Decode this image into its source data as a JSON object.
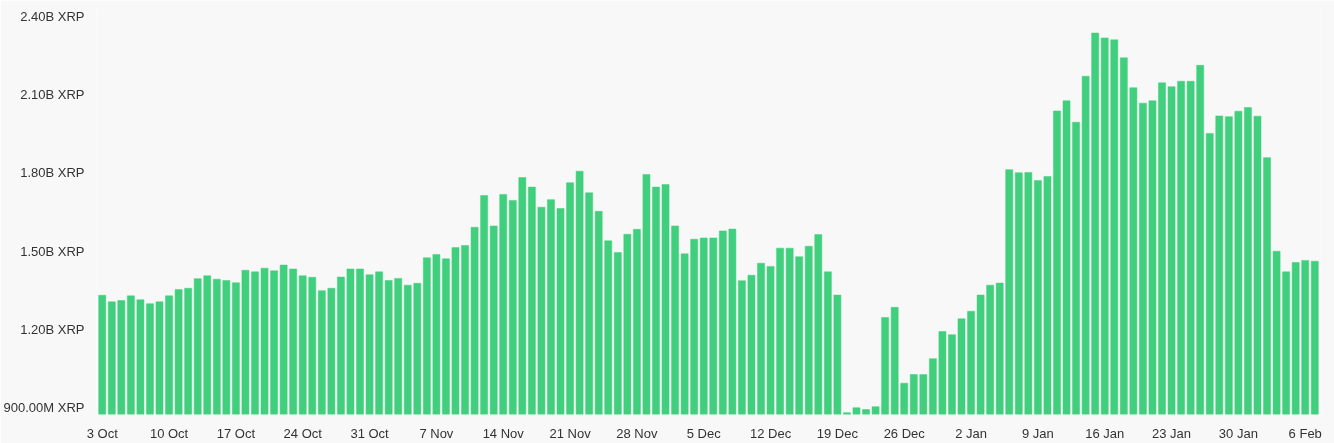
{
  "chart_data": {
    "type": "bar",
    "color": "#40cf7d",
    "categories": [
      "3 Oct",
      null,
      null,
      null,
      null,
      null,
      null,
      "10 Oct",
      null,
      null,
      null,
      null,
      null,
      null,
      "17 Oct",
      null,
      null,
      null,
      null,
      null,
      null,
      "24 Oct",
      null,
      null,
      null,
      null,
      null,
      null,
      "31 Oct",
      null,
      null,
      null,
      null,
      null,
      null,
      "7 Nov",
      null,
      null,
      null,
      null,
      null,
      null,
      "14 Nov",
      null,
      null,
      null,
      null,
      null,
      null,
      "21 Nov",
      null,
      null,
      null,
      null,
      null,
      null,
      "28 Nov",
      null,
      null,
      null,
      null,
      null,
      null,
      "5 Dec",
      null,
      null,
      null,
      null,
      null,
      null,
      "12 Dec",
      null,
      null,
      null,
      null,
      null,
      null,
      "19 Dec",
      null,
      null,
      null,
      null,
      null,
      null,
      "26 Dec",
      null,
      null,
      null,
      null,
      null,
      null,
      "2 Jan",
      null,
      null,
      null,
      null,
      null,
      null,
      "9 Jan",
      null,
      null,
      null,
      null,
      null,
      null,
      "16 Jan",
      null,
      null,
      null,
      null,
      null,
      null,
      "23 Jan",
      null,
      null,
      null,
      null,
      null,
      null,
      "30 Jan",
      null,
      null,
      null,
      null,
      null,
      null,
      "6 Feb",
      null
    ],
    "values": [
      1330000000.0,
      1305000000.0,
      1310000000.0,
      1328000000.0,
      1313000000.0,
      1298000000.0,
      1305000000.0,
      1328000000.0,
      1352000000.0,
      1357000000.0,
      1394000000.0,
      1405000000.0,
      1392000000.0,
      1387000000.0,
      1378000000.0,
      1426000000.0,
      1420000000.0,
      1434000000.0,
      1424000000.0,
      1446000000.0,
      1431000000.0,
      1405000000.0,
      1399000000.0,
      1348000000.0,
      1357000000.0,
      1400000000.0,
      1431000000.0,
      1431000000.0,
      1409000000.0,
      1420000000.0,
      1387000000.0,
      1395000000.0,
      1369000000.0,
      1376000000.0,
      1474000000.0,
      1487000000.0,
      1470000000.0,
      1513000000.0,
      1521000000.0,
      1591000000.0,
      1713000000.0,
      1596000000.0,
      1717000000.0,
      1694000000.0,
      1782000000.0,
      1745000000.0,
      1668000000.0,
      1697000000.0,
      1663000000.0,
      1762000000.0,
      1806000000.0,
      1723000000.0,
      1652000000.0,
      1539000000.0,
      1494000000.0,
      1564000000.0,
      1583000000.0,
      1793000000.0,
      1745000000.0,
      1755000000.0,
      1596000000.0,
      1489000000.0,
      1545000000.0,
      1550000000.0,
      1550000000.0,
      1577000000.0,
      1584000000.0,
      1386000000.0,
      1407000000.0,
      1453000000.0,
      1441000000.0,
      1511000000.0,
      1511000000.0,
      1478000000.0,
      1518000000.0,
      1563000000.0,
      1420000000.0,
      1331000000.0,
      880000000.0,
      899000000.0,
      892000000.0,
      903000000.0,
      1245000000.0,
      1284000000.0,
      993000000.0,
      1026000000.0,
      1026000000.0,
      1087000000.0,
      1191000000.0,
      1179000000.0,
      1240000000.0,
      1269000000.0,
      1331000000.0,
      1369000000.0,
      1377000000.0,
      1812000000.0,
      1800000000.0,
      1801000000.0,
      1770000000.0,
      1786000000.0,
      2037000000.0,
      2076000000.0,
      1994000000.0,
      2170000000.0,
      2336000000.0,
      2317000000.0,
      2310000000.0,
      2241000000.0,
      2126000000.0,
      2067000000.0,
      2076000000.0,
      2145000000.0,
      2130000000.0,
      2151000000.0,
      2151000000.0,
      2212000000.0,
      1951000000.0,
      2018000000.0,
      2015000000.0,
      2036000000.0,
      2050000000.0,
      2017000000.0,
      1858000000.0,
      1499000000.0,
      1420000000.0,
      1456000000.0,
      1464000000.0,
      1461000000.0
    ],
    "ylim": [
      873000000.0,
      2430000000.0
    ],
    "yticks": [
      {
        "value": 900000000.0,
        "label": "900.00M XRP"
      },
      {
        "value": 1200000000.0,
        "label": "1.20B XRP"
      },
      {
        "value": 1500000000.0,
        "label": "1.50B XRP"
      },
      {
        "value": 1800000000.0,
        "label": "1.80B XRP"
      },
      {
        "value": 2100000000.0,
        "label": "2.10B XRP"
      },
      {
        "value": 2400000000.0,
        "label": "2.40B XRP"
      }
    ],
    "grid": false,
    "legend": false
  }
}
